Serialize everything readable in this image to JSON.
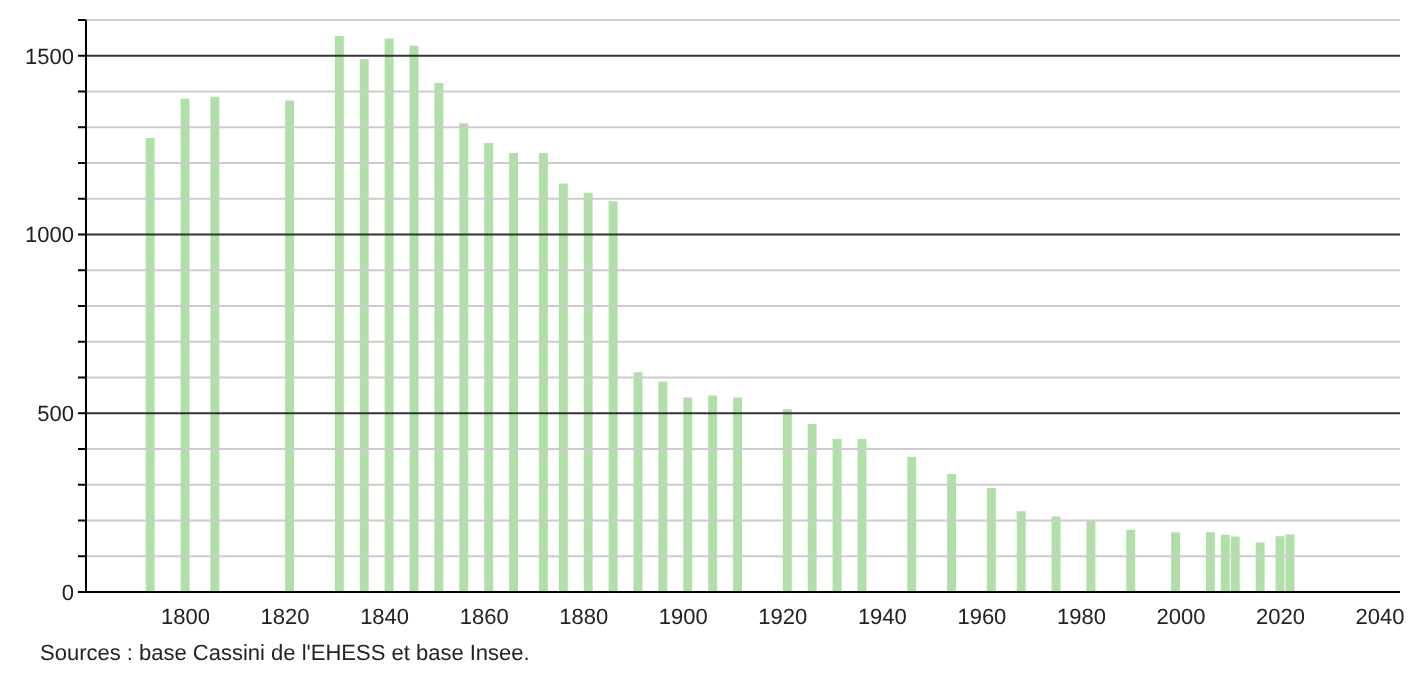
{
  "chart_data": {
    "type": "bar",
    "x": [
      1793,
      1800,
      1806,
      1821,
      1831,
      1836,
      1841,
      1846,
      1851,
      1856,
      1861,
      1866,
      1872,
      1876,
      1881,
      1886,
      1891,
      1896,
      1901,
      1906,
      1911,
      1921,
      1926,
      1931,
      1936,
      1946,
      1954,
      1962,
      1968,
      1975,
      1982,
      1990,
      1999,
      2006,
      2009,
      2011,
      2016,
      2020,
      2022
    ],
    "values": [
      1270,
      1380,
      1385,
      1375,
      1555,
      1490,
      1548,
      1528,
      1424,
      1311,
      1256,
      1228,
      1228,
      1143,
      1117,
      1093,
      615,
      589,
      544,
      550,
      544,
      511,
      470,
      428,
      428,
      378,
      330,
      291,
      226,
      211,
      198,
      174,
      167,
      167,
      160,
      155,
      139,
      156,
      161
    ],
    "color": "#b0e0a8",
    "xlim": [
      1780,
      2044
    ],
    "xticks": [
      1800,
      1820,
      1840,
      1860,
      1880,
      1900,
      1920,
      1940,
      1960,
      1980,
      2000,
      2020,
      2040
    ],
    "ylim": [
      0,
      1600
    ],
    "yticks": [
      0,
      {
        "value": 100,
        "label": null
      },
      {
        "value": 200,
        "label": null
      },
      {
        "value": 300,
        "label": null
      },
      {
        "value": 400,
        "label": null
      },
      500,
      {
        "value": 600,
        "label": null
      },
      {
        "value": 700,
        "label": null
      },
      {
        "value": 800,
        "label": null
      },
      {
        "value": 900,
        "label": null
      },
      1000,
      {
        "value": 1100,
        "label": null
      },
      {
        "value": 1200,
        "label": null
      },
      {
        "value": 1300,
        "label": null
      },
      {
        "value": 1400,
        "label": null
      },
      1500,
      {
        "value": 1600,
        "label": null
      }
    ],
    "grid": "y",
    "annotations": [
      "Sources : base Cassini de l'EHESS et base Insee."
    ]
  }
}
